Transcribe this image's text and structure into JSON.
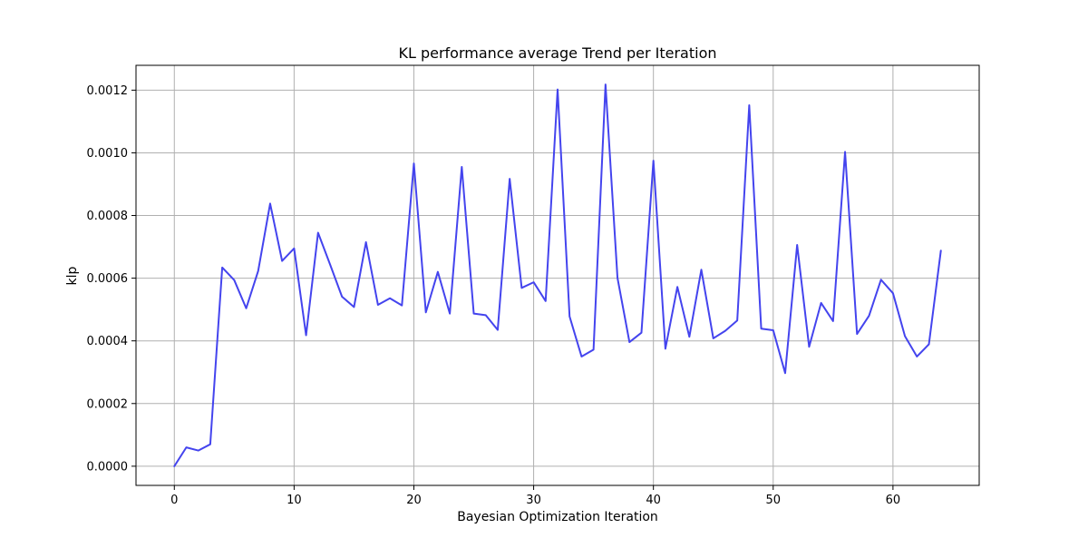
{
  "chart_data": {
    "type": "line",
    "title": "KL performance average Trend per Iteration",
    "xlabel": "Bayesian Optimization Iteration",
    "ylabel": "klp",
    "xlim": [
      -3.2,
      67.2
    ],
    "ylim": [
      -6.12e-05,
      0.0012792
    ],
    "x_ticks": [
      0,
      10,
      20,
      30,
      40,
      50,
      60
    ],
    "x_tick_labels": [
      "0",
      "10",
      "20",
      "30",
      "40",
      "50",
      "60"
    ],
    "y_ticks": [
      0,
      0.0002,
      0.0004,
      0.0006,
      0.0008,
      0.001,
      0.0012
    ],
    "y_tick_labels": [
      "0.0000",
      "0.0002",
      "0.0004",
      "0.0006",
      "0.0008",
      "0.0010",
      "0.0012"
    ],
    "grid": true,
    "colors": {
      "line": "#4444ee",
      "grid": "#b0b0b0",
      "axes": "#000000"
    },
    "series": [
      {
        "x": [
          0,
          1,
          2,
          3,
          4,
          5,
          6,
          7,
          8,
          9,
          10,
          11,
          12,
          13,
          14,
          15,
          16,
          17,
          18,
          19,
          20,
          21,
          22,
          23,
          24,
          25,
          26,
          27,
          28,
          29,
          30,
          31,
          32,
          33,
          34,
          35,
          36,
          37,
          38,
          39,
          40,
          41,
          42,
          43,
          44,
          45,
          46,
          47,
          48,
          49,
          50,
          51,
          52,
          53,
          54,
          55,
          56,
          57,
          58,
          59,
          60,
          61,
          62,
          63,
          64
        ],
        "values": [
          0.0,
          6e-05,
          5e-05,
          7e-05,
          0.000634,
          0.000594,
          0.000504,
          0.000623,
          0.000838,
          0.000655,
          0.000695,
          0.000418,
          0.000745,
          0.000644,
          0.000541,
          0.000508,
          0.000715,
          0.000515,
          0.000536,
          0.000513,
          0.000966,
          0.000491,
          0.00062,
          0.000487,
          0.000955,
          0.000487,
          0.000482,
          0.000435,
          0.000917,
          0.000569,
          0.000587,
          0.000527,
          0.001202,
          0.000478,
          0.00035,
          0.000372,
          0.001218,
          0.000601,
          0.000396,
          0.000426,
          0.000975,
          0.000375,
          0.000572,
          0.000413,
          0.000627,
          0.000408,
          0.000432,
          0.000465,
          0.001152,
          0.000439,
          0.000434,
          0.000297,
          0.000706,
          0.000381,
          0.000521,
          0.000463,
          0.001003,
          0.000422,
          0.00048,
          0.000595,
          0.000552,
          0.000415,
          0.00035,
          0.000389,
          0.000688
        ]
      }
    ]
  }
}
